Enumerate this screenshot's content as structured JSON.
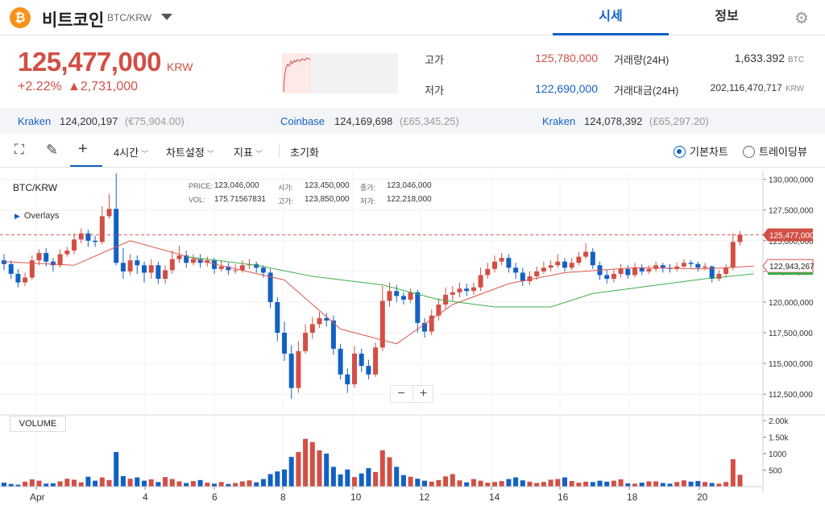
{
  "header": {
    "coin_icon_glyph": "₿",
    "coin_name": "비트코인",
    "pair": "BTC/KRW",
    "tabs": [
      {
        "label": "시세"
      },
      {
        "label": "정보"
      }
    ]
  },
  "price": {
    "current": "125,477,000",
    "currency": "KRW",
    "change_pct": "+2.22%",
    "change_amt": "▲2,731,000"
  },
  "stats": {
    "high_label": "고가",
    "high_value": "125,780,000",
    "low_label": "저가",
    "low_value": "122,690,000",
    "volume_label": "거래량(24H)",
    "volume_value": "1,633.392",
    "volume_unit": "BTC",
    "amount_label": "거래대금(24H)",
    "amount_value": "202,116,470,717",
    "amount_unit": "KRW"
  },
  "exchanges": [
    {
      "name": "Kraken",
      "price": "124,200,197",
      "fx": "(€75,904.00)"
    },
    {
      "name": "Coinbase",
      "price": "124,169,698",
      "fx": "(£65,345.25)"
    },
    {
      "name": "Kraken",
      "price": "124,078,392",
      "fx": "(£65,297.20)"
    }
  ],
  "toolbar": {
    "interval": "4시간",
    "chart_settings": "차트설정",
    "indicators": "지표",
    "reset": "초기화",
    "mode_basic": "기본차트",
    "mode_trading": "트레이딩뷰",
    "selected_mode": "basic"
  },
  "chart_legend": {
    "pair": "BTC/KRW",
    "overlays": "Overlays",
    "price_label": "PRICE:",
    "price_value": "123,046,000",
    "vol_label": "VOL:",
    "vol_value": "175.71567831",
    "open_label": "시가:",
    "open_value": "123,450,000",
    "high_label": "고가:",
    "high_value": "123,850,000",
    "close_label": "종가:",
    "close_value": "123,046,000",
    "low_label": "저가:",
    "low_value": "122,218,000",
    "volume_panel": "VOLUME"
  },
  "colors": {
    "up": "#d24f45",
    "down": "#1261c4",
    "ma_short": "#e05550",
    "ma_long": "#3fae49"
  },
  "chart_data": {
    "type": "candlestick",
    "price_axis": {
      "ylim": [
        111000000,
        130700000
      ],
      "ticks": [
        "130,000,000",
        "127,500,000",
        "125,000,000",
        "122,500,000",
        "120,000,000",
        "117,500,000",
        "115,000,000",
        "112,500,000"
      ]
    },
    "volume_axis": {
      "ylim": [
        0,
        2100
      ],
      "ticks": [
        "2.00k",
        "1.50k",
        "1000",
        "500"
      ]
    },
    "x_ticks": [
      "Apr",
      "4",
      "6",
      "8",
      "10",
      "12",
      "14",
      "16",
      "18",
      "20"
    ],
    "current_price_tag": "125,477,000",
    "ma_tag": "122,943,267",
    "candles": [
      [
        123.4,
        123.1,
        123.9,
        122.6
      ],
      [
        123.1,
        122.3,
        123.4,
        121.9
      ],
      [
        122.3,
        121.6,
        122.7,
        121.2
      ],
      [
        121.6,
        122.0,
        122.4,
        121.3
      ],
      [
        122.0,
        123.4,
        123.8,
        121.8
      ],
      [
        123.4,
        124.0,
        124.3,
        123.0
      ],
      [
        124.0,
        123.3,
        124.4,
        122.9
      ],
      [
        123.3,
        123.0,
        123.6,
        122.5
      ],
      [
        123.0,
        123.9,
        124.3,
        122.8
      ],
      [
        123.9,
        124.2,
        124.5,
        123.7
      ],
      [
        124.2,
        125.1,
        125.6,
        123.9
      ],
      [
        125.1,
        125.6,
        126.0,
        124.8
      ],
      [
        125.6,
        125.0,
        125.9,
        124.5
      ],
      [
        125.0,
        124.9,
        125.4,
        124.5
      ],
      [
        124.9,
        127.0,
        127.8,
        124.7
      ],
      [
        127.0,
        127.6,
        128.8,
        126.8
      ],
      [
        127.6,
        123.2,
        130.5,
        123.0
      ],
      [
        123.2,
        122.5,
        124.4,
        121.9
      ],
      [
        122.5,
        123.4,
        123.9,
        122.2
      ],
      [
        123.4,
        123.0,
        123.8,
        122.3
      ],
      [
        123.0,
        122.4,
        123.3,
        121.6
      ],
      [
        122.4,
        123.0,
        123.5,
        121.9
      ],
      [
        123.0,
        121.9,
        123.3,
        121.5
      ],
      [
        121.9,
        122.6,
        123.0,
        121.5
      ],
      [
        122.6,
        123.5,
        124.2,
        122.3
      ],
      [
        123.5,
        123.8,
        124.6,
        123.2
      ],
      [
        123.8,
        123.2,
        124.2,
        122.8
      ],
      [
        123.2,
        123.5,
        123.9,
        123.0
      ],
      [
        123.5,
        123.2,
        123.9,
        122.8
      ],
      [
        123.2,
        123.4,
        123.7,
        122.9
      ],
      [
        123.4,
        122.7,
        123.6,
        122.3
      ],
      [
        122.7,
        122.9,
        123.4,
        122.5
      ],
      [
        122.9,
        122.6,
        123.2,
        122.2
      ],
      [
        122.6,
        122.6,
        123.1,
        122.3
      ],
      [
        122.6,
        123.0,
        123.4,
        122.4
      ],
      [
        123.0,
        123.1,
        123.5,
        122.7
      ],
      [
        123.1,
        122.8,
        123.3,
        122.4
      ],
      [
        122.8,
        122.4,
        123.0,
        122.0
      ],
      [
        122.4,
        120.0,
        122.7,
        119.5
      ],
      [
        120.0,
        117.5,
        120.4,
        116.8
      ],
      [
        117.5,
        115.8,
        118.4,
        115.2
      ],
      [
        115.8,
        113.0,
        116.5,
        112.1
      ],
      [
        113.0,
        116.0,
        116.8,
        112.6
      ],
      [
        116.0,
        117.5,
        118.2,
        115.8
      ],
      [
        117.5,
        118.2,
        118.8,
        117.0
      ],
      [
        118.2,
        118.7,
        119.2,
        117.9
      ],
      [
        118.7,
        118.5,
        119.1,
        118.0
      ],
      [
        118.5,
        116.2,
        118.9,
        115.7
      ],
      [
        116.2,
        114.1,
        116.6,
        113.7
      ],
      [
        114.1,
        113.3,
        114.6,
        112.6
      ],
      [
        113.3,
        115.8,
        116.4,
        113.0
      ],
      [
        115.8,
        114.8,
        116.2,
        114.3
      ],
      [
        114.8,
        114.1,
        115.3,
        113.7
      ],
      [
        114.1,
        116.3,
        116.7,
        113.9
      ],
      [
        116.3,
        120.1,
        121.3,
        116.0
      ],
      [
        120.1,
        120.9,
        121.6,
        119.6
      ],
      [
        120.9,
        120.5,
        121.4,
        120.0
      ],
      [
        120.5,
        120.2,
        120.8,
        119.8
      ],
      [
        120.2,
        120.8,
        121.1,
        119.9
      ],
      [
        120.8,
        118.3,
        121.0,
        117.5
      ],
      [
        118.3,
        117.6,
        118.7,
        117.1
      ],
      [
        117.6,
        118.9,
        119.4,
        117.3
      ],
      [
        118.9,
        119.8,
        120.3,
        118.5
      ],
      [
        119.8,
        120.6,
        121.2,
        119.4
      ],
      [
        120.6,
        120.8,
        121.3,
        120.1
      ],
      [
        120.8,
        121.1,
        121.6,
        120.4
      ],
      [
        121.1,
        120.9,
        121.5,
        120.5
      ],
      [
        120.9,
        121.2,
        121.6,
        120.6
      ],
      [
        121.2,
        122.2,
        122.8,
        120.9
      ],
      [
        122.2,
        122.7,
        123.2,
        121.9
      ],
      [
        122.7,
        123.3,
        123.8,
        122.4
      ],
      [
        123.3,
        123.6,
        124.0,
        123.0
      ],
      [
        123.6,
        122.8,
        123.9,
        122.4
      ],
      [
        122.8,
        122.4,
        123.2,
        121.9
      ],
      [
        122.4,
        121.7,
        122.8,
        121.3
      ],
      [
        121.7,
        122.1,
        122.5,
        121.4
      ],
      [
        122.1,
        122.5,
        122.9,
        121.8
      ],
      [
        122.5,
        122.8,
        123.3,
        122.3
      ],
      [
        122.8,
        123.0,
        123.4,
        122.5
      ],
      [
        123.0,
        123.3,
        123.9,
        122.8
      ],
      [
        123.3,
        122.8,
        123.6,
        122.5
      ],
      [
        122.8,
        123.2,
        123.6,
        122.6
      ],
      [
        123.2,
        123.7,
        124.1,
        123.0
      ],
      [
        123.7,
        124.1,
        124.8,
        123.5
      ],
      [
        124.1,
        123.0,
        124.4,
        122.7
      ],
      [
        123.0,
        122.2,
        123.3,
        121.8
      ],
      [
        122.2,
        121.9,
        122.6,
        121.5
      ],
      [
        121.9,
        122.3,
        122.7,
        121.6
      ],
      [
        122.3,
        122.7,
        123.1,
        122.0
      ],
      [
        122.7,
        122.2,
        123.0,
        121.9
      ],
      [
        122.2,
        122.8,
        123.2,
        122.0
      ],
      [
        122.8,
        122.5,
        123.1,
        122.2
      ],
      [
        122.5,
        122.7,
        123.0,
        122.3
      ],
      [
        122.7,
        123.0,
        123.3,
        122.5
      ],
      [
        123.0,
        122.8,
        123.2,
        122.4
      ],
      [
        122.8,
        122.7,
        123.1,
        122.4
      ],
      [
        122.7,
        122.9,
        123.2,
        122.5
      ],
      [
        122.9,
        123.2,
        123.5,
        122.8
      ],
      [
        123.2,
        123.1,
        123.4,
        122.8
      ],
      [
        123.1,
        122.8,
        123.3,
        122.5
      ],
      [
        122.8,
        122.9,
        123.2,
        122.6
      ],
      [
        122.9,
        121.9,
        123.0,
        121.6
      ],
      [
        121.9,
        122.3,
        122.6,
        121.7
      ],
      [
        122.3,
        122.8,
        123.1,
        122.0
      ],
      [
        122.8,
        124.9,
        125.6,
        122.6
      ],
      [
        124.9,
        125.5,
        125.8,
        124.6
      ]
    ],
    "volumes": [
      120,
      80,
      60,
      150,
      220,
      180,
      90,
      100,
      160,
      240,
      210,
      130,
      300,
      180,
      280,
      200,
      1050,
      320,
      240,
      280,
      180,
      220,
      140,
      290,
      230,
      160,
      110,
      170,
      200,
      120,
      90,
      140,
      80,
      110,
      160,
      190,
      130,
      230,
      380,
      460,
      520,
      900,
      1050,
      1450,
      1350,
      1100,
      1000,
      600,
      370,
      520,
      290,
      400,
      560,
      440,
      1100,
      890,
      600,
      350,
      300,
      240,
      180,
      150,
      200,
      310,
      380,
      190,
      130,
      230,
      180,
      120,
      140,
      170,
      230,
      280,
      190,
      150,
      110,
      140,
      210,
      230,
      280,
      170,
      120,
      150,
      140,
      180,
      150,
      180,
      220,
      100,
      90,
      120,
      160,
      160,
      110,
      90,
      140,
      190,
      150,
      170,
      140,
      110,
      90,
      140,
      830,
      360
    ],
    "ma_short": [
      [
        0,
        123.3
      ],
      [
        10,
        123.0
      ],
      [
        18,
        125.0
      ],
      [
        30,
        123.1
      ],
      [
        40,
        121.8
      ],
      [
        48,
        117.8
      ],
      [
        56,
        116.6
      ],
      [
        64,
        119.8
      ],
      [
        72,
        121.5
      ],
      [
        80,
        122.4
      ],
      [
        90,
        122.8
      ],
      [
        100,
        122.7
      ],
      [
        107,
        122.94
      ]
    ],
    "ma_long": [
      [
        26,
        123.7
      ],
      [
        36,
        123.0
      ],
      [
        44,
        122.1
      ],
      [
        54,
        121.4
      ],
      [
        62,
        120.2
      ],
      [
        70,
        119.6
      ],
      [
        78,
        119.6
      ],
      [
        84,
        120.7
      ],
      [
        92,
        121.3
      ],
      [
        100,
        121.9
      ],
      [
        107,
        122.3
      ]
    ]
  }
}
